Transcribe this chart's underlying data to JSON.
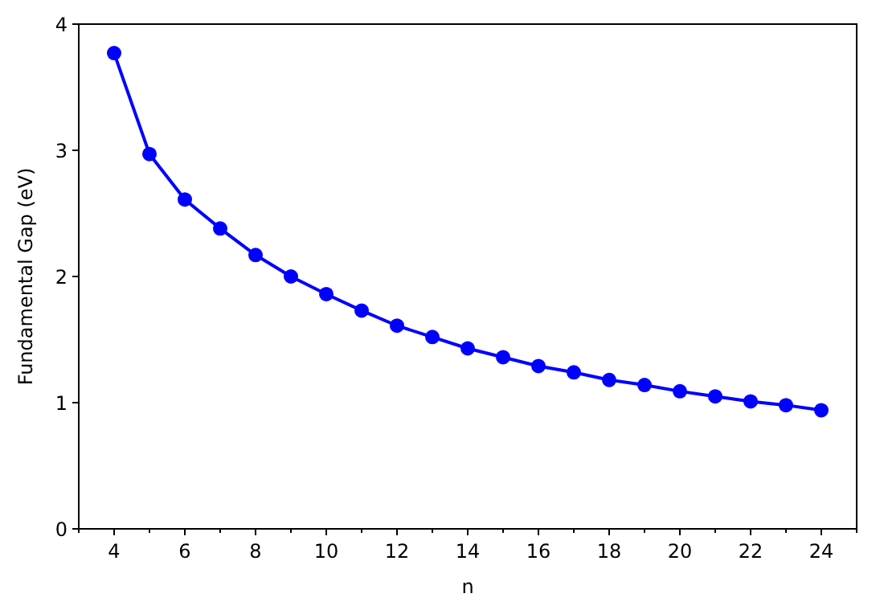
{
  "chart_data": {
    "type": "line",
    "xlabel": "n",
    "ylabel": "Fundamental Gap (eV)",
    "x": [
      4,
      5,
      6,
      7,
      8,
      9,
      10,
      11,
      12,
      13,
      14,
      15,
      16,
      17,
      18,
      19,
      20,
      21,
      22,
      23,
      24
    ],
    "series": [
      {
        "color": "#0000ff",
        "values": [
          3.77,
          2.97,
          2.61,
          2.38,
          2.17,
          2.0,
          1.86,
          1.73,
          1.61,
          1.52,
          1.43,
          1.36,
          1.29,
          1.24,
          1.18,
          1.14,
          1.09,
          1.05,
          1.01,
          0.98,
          0.94
        ]
      }
    ],
    "xlim": [
      3,
      25
    ],
    "ylim": [
      0,
      4
    ],
    "xticks": [
      {
        "value": 3,
        "label": null
      },
      4,
      {
        "value": 5,
        "label": null
      },
      6,
      {
        "value": 7,
        "label": null
      },
      8,
      {
        "value": 9,
        "label": null
      },
      10,
      {
        "value": 11,
        "label": null
      },
      12,
      {
        "value": 13,
        "label": null
      },
      14,
      {
        "value": 15,
        "label": null
      },
      16,
      {
        "value": 17,
        "label": null
      },
      18,
      {
        "value": 19,
        "label": null
      },
      20,
      {
        "value": 21,
        "label": null
      },
      22,
      {
        "value": 23,
        "label": null
      },
      24,
      {
        "value": 25,
        "label": null
      }
    ],
    "yticks": [
      0,
      1,
      2,
      3,
      4
    ],
    "marker": "circle",
    "line_style": "solid"
  }
}
